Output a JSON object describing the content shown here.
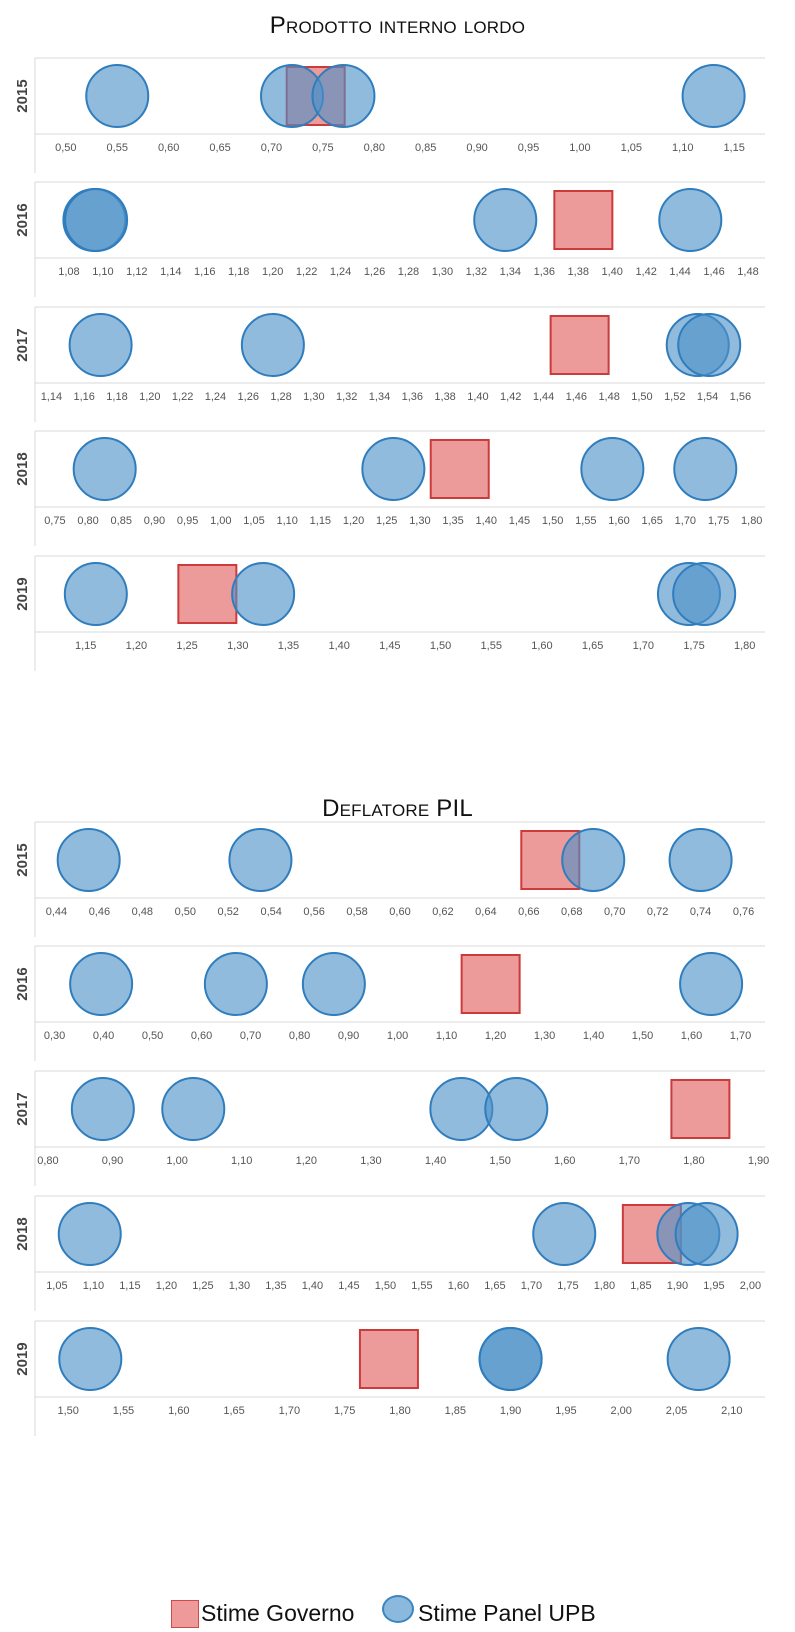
{
  "sections": [
    {
      "title": "Prodotto interno lordo"
    },
    {
      "title": "Deflatore PIL"
    }
  ],
  "legend": {
    "governo_label": "Stime Governo",
    "panel_label": "Stime Panel UPB",
    "governo_color": "#e98a8a",
    "panel_color": "#6fa7d4"
  },
  "chart_data": [
    {
      "type": "scatter",
      "section": "Prodotto interno lordo",
      "year_label": "2015",
      "xlim": [
        0.47,
        1.18
      ],
      "ticks": [
        0.5,
        0.55,
        0.6,
        0.65,
        0.7,
        0.75,
        0.8,
        0.85,
        0.9,
        0.95,
        1.0,
        1.05,
        1.1,
        1.15
      ],
      "tick_labels": [
        "0,50",
        "0,55",
        "0,60",
        "0,65",
        "0,70",
        "0,75",
        "0,80",
        "0,85",
        "0,90",
        "0,95",
        "1,00",
        "1,05",
        "1,10",
        "1,15"
      ],
      "series": [
        {
          "name": "Stime Governo",
          "x": [
            0.743
          ]
        },
        {
          "name": "Stime Panel UPB",
          "x": [
            0.55,
            0.72,
            0.77,
            1.13
          ]
        }
      ]
    },
    {
      "type": "scatter",
      "section": "Prodotto interno lordo",
      "year_label": "2016",
      "xlim": [
        1.06,
        1.49
      ],
      "ticks": [
        1.08,
        1.1,
        1.12,
        1.14,
        1.16,
        1.18,
        1.2,
        1.22,
        1.24,
        1.26,
        1.28,
        1.3,
        1.32,
        1.34,
        1.36,
        1.38,
        1.4,
        1.42,
        1.44,
        1.46,
        1.48
      ],
      "tick_labels": [
        "1,08",
        "1,10",
        "1,12",
        "1,14",
        "1,16",
        "1,18",
        "1,20",
        "1,22",
        "1,24",
        "1,26",
        "1,28",
        "1,30",
        "1,32",
        "1,34",
        "1,36",
        "1,38",
        "1,40",
        "1,42",
        "1,44",
        "1,46",
        "1,48"
      ],
      "series": [
        {
          "name": "Stime Governo",
          "x": [
            1.383
          ]
        },
        {
          "name": "Stime Panel UPB",
          "x": [
            1.095,
            1.096,
            1.337,
            1.446
          ]
        }
      ]
    },
    {
      "type": "scatter",
      "section": "Prodotto interno lordo",
      "year_label": "2017",
      "xlim": [
        1.13,
        1.575
      ],
      "ticks": [
        1.14,
        1.16,
        1.18,
        1.2,
        1.22,
        1.24,
        1.26,
        1.28,
        1.3,
        1.32,
        1.34,
        1.36,
        1.38,
        1.4,
        1.42,
        1.44,
        1.46,
        1.48,
        1.5,
        1.52,
        1.54,
        1.56
      ],
      "tick_labels": [
        "1,14",
        "1,16",
        "1,18",
        "1,20",
        "1,22",
        "1,24",
        "1,26",
        "1,28",
        "1,30",
        "1,32",
        "1,34",
        "1,36",
        "1,38",
        "1,40",
        "1,42",
        "1,44",
        "1,46",
        "1,48",
        "1,50",
        "1,52",
        "1,54",
        "1,56"
      ],
      "series": [
        {
          "name": "Stime Governo",
          "x": [
            1.462
          ]
        },
        {
          "name": "Stime Panel UPB",
          "x": [
            1.17,
            1.275,
            1.534,
            1.541
          ]
        }
      ]
    },
    {
      "type": "scatter",
      "section": "Prodotto interno lordo",
      "year_label": "2018",
      "xlim": [
        0.72,
        1.82
      ],
      "ticks": [
        0.75,
        0.8,
        0.85,
        0.9,
        0.95,
        1.0,
        1.05,
        1.1,
        1.15,
        1.2,
        1.25,
        1.3,
        1.35,
        1.4,
        1.45,
        1.5,
        1.55,
        1.6,
        1.65,
        1.7,
        1.75,
        1.8
      ],
      "tick_labels": [
        "0,75",
        "0,80",
        "0,85",
        "0,90",
        "0,95",
        "1,00",
        "1,05",
        "1,10",
        "1,15",
        "1,20",
        "1,25",
        "1,30",
        "1,35",
        "1,40",
        "1,45",
        "1,50",
        "1,55",
        "1,60",
        "1,65",
        "1,70",
        "1,75",
        "1,80"
      ],
      "series": [
        {
          "name": "Stime Governo",
          "x": [
            1.36
          ]
        },
        {
          "name": "Stime Panel UPB",
          "x": [
            0.825,
            1.26,
            1.59,
            1.73
          ]
        }
      ]
    },
    {
      "type": "scatter",
      "section": "Prodotto interno lordo",
      "year_label": "2019",
      "xlim": [
        1.1,
        1.82
      ],
      "ticks": [
        1.15,
        1.2,
        1.25,
        1.3,
        1.35,
        1.4,
        1.45,
        1.5,
        1.55,
        1.6,
        1.65,
        1.7,
        1.75,
        1.8
      ],
      "tick_labels": [
        "1,15",
        "1,20",
        "1,25",
        "1,30",
        "1,35",
        "1,40",
        "1,45",
        "1,50",
        "1,55",
        "1,60",
        "1,65",
        "1,70",
        "1,75",
        "1,80"
      ],
      "series": [
        {
          "name": "Stime Governo",
          "x": [
            1.27
          ]
        },
        {
          "name": "Stime Panel UPB",
          "x": [
            1.16,
            1.325,
            1.745,
            1.76
          ]
        }
      ]
    },
    {
      "type": "scatter",
      "section": "Deflatore PIL",
      "year_label": "2015",
      "xlim": [
        0.43,
        0.77
      ],
      "ticks": [
        0.44,
        0.46,
        0.48,
        0.5,
        0.52,
        0.54,
        0.56,
        0.58,
        0.6,
        0.62,
        0.64,
        0.66,
        0.68,
        0.7,
        0.72,
        0.74,
        0.76
      ],
      "tick_labels": [
        "0,44",
        "0,46",
        "0,48",
        "0,50",
        "0,52",
        "0,54",
        "0,56",
        "0,58",
        "0,60",
        "0,62",
        "0,64",
        "0,66",
        "0,68",
        "0,70",
        "0,72",
        "0,74",
        "0,76"
      ],
      "series": [
        {
          "name": "Stime Governo",
          "x": [
            0.67
          ]
        },
        {
          "name": "Stime Panel UPB",
          "x": [
            0.455,
            0.535,
            0.69,
            0.74
          ]
        }
      ]
    },
    {
      "type": "scatter",
      "section": "Deflatore PIL",
      "year_label": "2016",
      "xlim": [
        0.26,
        1.75
      ],
      "ticks": [
        0.3,
        0.4,
        0.5,
        0.6,
        0.7,
        0.8,
        0.9,
        1.0,
        1.1,
        1.2,
        1.3,
        1.4,
        1.5,
        1.6,
        1.7
      ],
      "tick_labels": [
        "0,30",
        "0,40",
        "0,50",
        "0,60",
        "0,70",
        "0,80",
        "0,90",
        "1,00",
        "1,10",
        "1,20",
        "1,30",
        "1,40",
        "1,50",
        "1,60",
        "1,70"
      ],
      "series": [
        {
          "name": "Stime Governo",
          "x": [
            1.19
          ]
        },
        {
          "name": "Stime Panel UPB",
          "x": [
            0.395,
            0.67,
            0.87,
            1.64
          ]
        }
      ]
    },
    {
      "type": "scatter",
      "section": "Deflatore PIL",
      "year_label": "2017",
      "xlim": [
        0.78,
        1.91
      ],
      "ticks": [
        0.8,
        0.9,
        1.0,
        1.1,
        1.2,
        1.3,
        1.4,
        1.5,
        1.6,
        1.7,
        1.8,
        1.9
      ],
      "tick_labels": [
        "0,80",
        "0,90",
        "1,00",
        "1,10",
        "1,20",
        "1,30",
        "1,40",
        "1,50",
        "1,60",
        "1,70",
        "1,80",
        "1,90"
      ],
      "series": [
        {
          "name": "Stime Governo",
          "x": [
            1.81
          ]
        },
        {
          "name": "Stime Panel UPB",
          "x": [
            0.885,
            1.025,
            1.44,
            1.525
          ]
        }
      ]
    },
    {
      "type": "scatter",
      "section": "Deflatore PIL",
      "year_label": "2018",
      "xlim": [
        1.02,
        2.02
      ],
      "ticks": [
        1.05,
        1.1,
        1.15,
        1.2,
        1.25,
        1.3,
        1.35,
        1.4,
        1.45,
        1.5,
        1.55,
        1.6,
        1.65,
        1.7,
        1.75,
        1.8,
        1.85,
        1.9,
        1.95,
        2.0
      ],
      "tick_labels": [
        "1,05",
        "1,10",
        "1,15",
        "1,20",
        "1,25",
        "1,30",
        "1,35",
        "1,40",
        "1,45",
        "1,50",
        "1,55",
        "1,60",
        "1,65",
        "1,70",
        "1,75",
        "1,80",
        "1,85",
        "1,90",
        "1,95",
        "2,00"
      ],
      "series": [
        {
          "name": "Stime Governo",
          "x": [
            1.865
          ]
        },
        {
          "name": "Stime Panel UPB",
          "x": [
            1.095,
            1.745,
            1.915,
            1.94
          ]
        }
      ]
    },
    {
      "type": "scatter",
      "section": "Deflatore PIL",
      "year_label": "2019",
      "xlim": [
        1.47,
        2.13
      ],
      "ticks": [
        1.5,
        1.55,
        1.6,
        1.65,
        1.7,
        1.75,
        1.8,
        1.85,
        1.9,
        1.95,
        2.0,
        2.05,
        2.1
      ],
      "tick_labels": [
        "1,50",
        "1,55",
        "1,60",
        "1,65",
        "1,70",
        "1,75",
        "1,80",
        "1,85",
        "1,90",
        "1,95",
        "2,00",
        "2,05",
        "2,10"
      ],
      "series": [
        {
          "name": "Stime Governo",
          "x": [
            1.79
          ]
        },
        {
          "name": "Stime Panel UPB",
          "x": [
            1.52,
            1.9,
            1.9,
            2.07
          ]
        }
      ]
    }
  ]
}
